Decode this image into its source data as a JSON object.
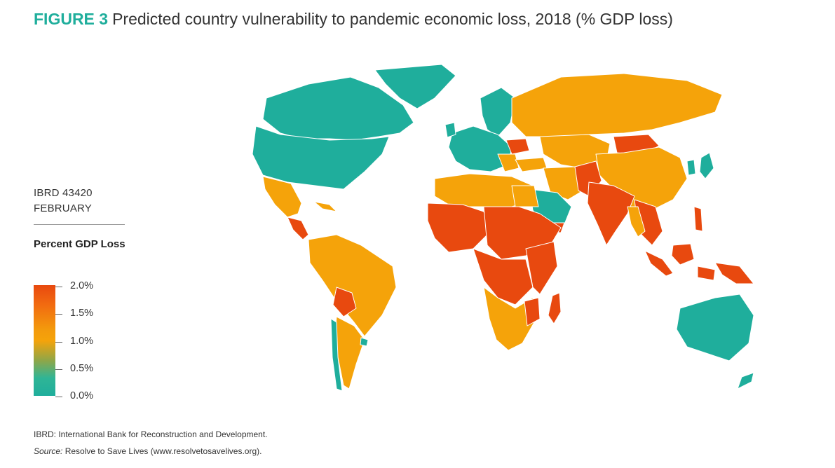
{
  "figure": {
    "label": "FIGURE 3",
    "title": "Predicted country vulnerability to pandemic economic loss, 2018 (% GDP loss)"
  },
  "map_id": {
    "line1": "IBRD 43420",
    "line2": "FEBRUARY"
  },
  "legend": {
    "title": "Percent GDP Loss",
    "ticks": [
      "2.0%",
      "1.5%",
      "1.0%",
      "0.5%",
      "0.0%"
    ],
    "colors": {
      "high": "#e8490f",
      "mid_high": "#f26b10",
      "mid": "#f5a30a",
      "low": "#1fae9c",
      "border": "#ffffff"
    }
  },
  "footnotes": {
    "ibrd": "IBRD: International Bank for Reconstruction and Development.",
    "source_label": "Source:",
    "source_text": "Resolve to Save Lives (www.resolvetosavelives.org)."
  }
}
